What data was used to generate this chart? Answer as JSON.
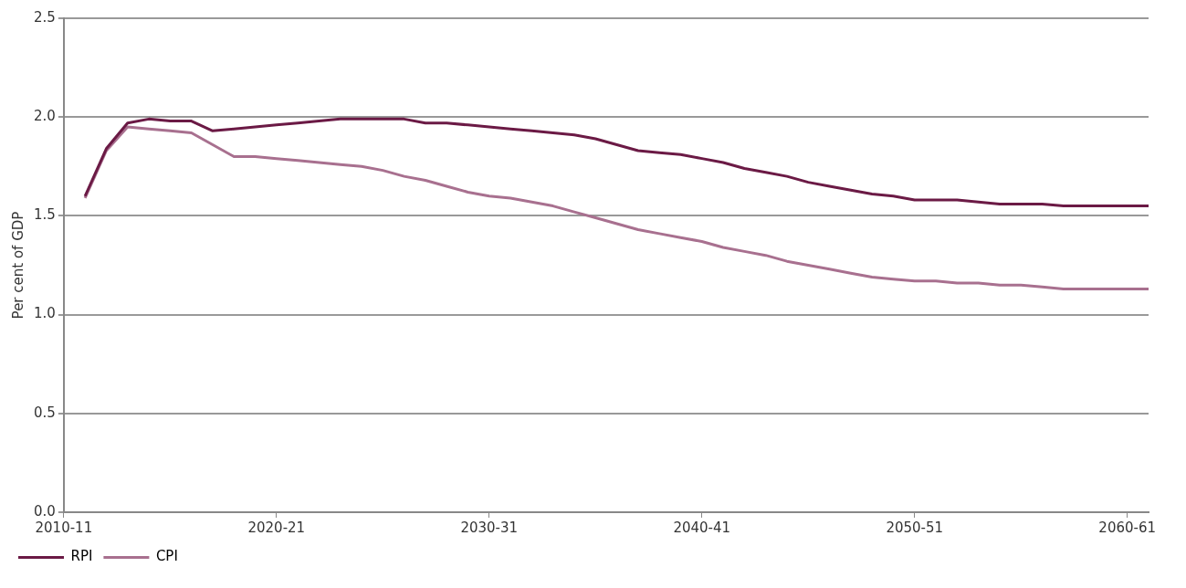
{
  "chart_data": {
    "type": "line",
    "ylabel": "Per cent of GDP",
    "categories": [
      "2010-11",
      null,
      null,
      null,
      null,
      null,
      null,
      null,
      null,
      null,
      "2020-21",
      null,
      null,
      null,
      null,
      null,
      null,
      null,
      null,
      null,
      "2030-31",
      null,
      null,
      null,
      null,
      null,
      null,
      null,
      null,
      null,
      "2040-41",
      null,
      null,
      null,
      null,
      null,
      null,
      null,
      null,
      null,
      "2050-51",
      null,
      null,
      null,
      null,
      null,
      null,
      null,
      null,
      null,
      "2060-61",
      null
    ],
    "series": [
      {
        "name": "RPI",
        "color": "#6b1a45",
        "values": [
          null,
          1.6,
          1.84,
          1.97,
          1.99,
          1.98,
          1.98,
          1.93,
          1.94,
          1.95,
          1.96,
          1.97,
          1.98,
          1.99,
          1.99,
          1.99,
          1.99,
          1.97,
          1.97,
          1.96,
          1.95,
          1.94,
          1.93,
          1.92,
          1.91,
          1.89,
          1.86,
          1.83,
          1.82,
          1.81,
          1.79,
          1.77,
          1.74,
          1.72,
          1.7,
          1.67,
          1.65,
          1.63,
          1.61,
          1.6,
          1.58,
          1.58,
          1.58,
          1.57,
          1.56,
          1.56,
          1.56,
          1.55,
          1.55,
          1.55,
          1.55,
          1.55
        ]
      },
      {
        "name": "CPI",
        "color": "#a8708f",
        "values": [
          null,
          1.59,
          1.83,
          1.95,
          1.94,
          1.93,
          1.92,
          1.86,
          1.8,
          1.8,
          1.79,
          1.78,
          1.77,
          1.76,
          1.75,
          1.73,
          1.7,
          1.68,
          1.65,
          1.62,
          1.6,
          1.59,
          1.57,
          1.55,
          1.52,
          1.49,
          1.46,
          1.43,
          1.41,
          1.39,
          1.37,
          1.34,
          1.32,
          1.3,
          1.27,
          1.25,
          1.23,
          1.21,
          1.19,
          1.18,
          1.17,
          1.17,
          1.16,
          1.16,
          1.15,
          1.15,
          1.14,
          1.13,
          1.13,
          1.13,
          1.13,
          1.13
        ]
      }
    ],
    "ylim": [
      0,
      2.5
    ],
    "yticks": [
      {
        "value": 0,
        "label": "0.0"
      },
      {
        "value": 0.5,
        "label": "0.5"
      },
      {
        "value": 1,
        "label": "1.0"
      },
      {
        "value": 1.5,
        "label": "1.5"
      },
      {
        "value": 2,
        "label": "2.0"
      },
      {
        "value": 2.5,
        "label": "2.5"
      }
    ],
    "grid": "y",
    "legend": "bottom",
    "marker": "none",
    "line_style": "solid"
  }
}
